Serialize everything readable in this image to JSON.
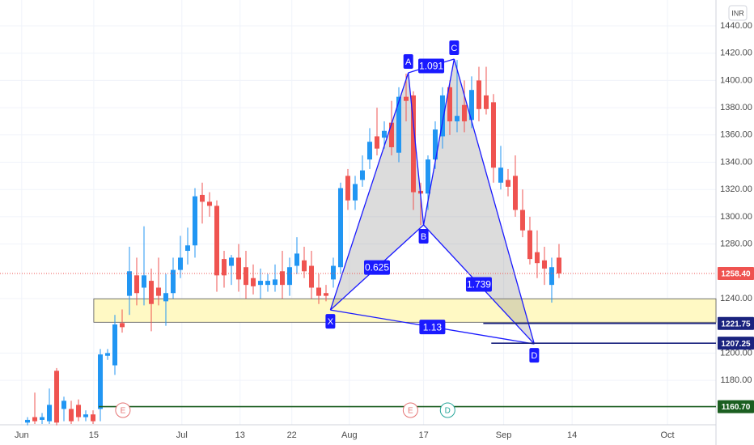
{
  "chart_data": {
    "type": "candlestick",
    "currency": "INR",
    "x": [
      0,
      1,
      2,
      3,
      4,
      5,
      6,
      7,
      8,
      9,
      10,
      11,
      12,
      13,
      14,
      15,
      16,
      17,
      18,
      19,
      20,
      21,
      22,
      23,
      24,
      25,
      26,
      27,
      28,
      29,
      30,
      31,
      32,
      33,
      34,
      35,
      36,
      37,
      38,
      39,
      40,
      41,
      42,
      43,
      44,
      45,
      46,
      47,
      48,
      49,
      50,
      51,
      52,
      53,
      54,
      55,
      56,
      57,
      58,
      59,
      60,
      61,
      62,
      63,
      64,
      65,
      66,
      67,
      68,
      69,
      70,
      71,
      72,
      73
    ],
    "open": [
      1149,
      1153,
      1151,
      1150,
      1187,
      1159,
      1159,
      1162,
      1153,
      1155,
      1159,
      1198,
      1191,
      1222,
      1242,
      1257,
      1248,
      1253,
      1248,
      1238,
      1244,
      1261,
      1275,
      1279,
      1316,
      1311,
      1308,
      1269,
      1264,
      1270,
      1263,
      1255,
      1250,
      1250,
      1250,
      1260,
      1250,
      1264,
      1268,
      1264,
      1248,
      1244,
      1254,
      1263,
      1330,
      1312,
      1327,
      1342,
      1359,
      1358,
      1369,
      1347,
      1388,
      1389,
      1319,
      1317,
      1342,
      1359,
      1395,
      1370,
      1382,
      1371,
      1400,
      1389,
      1384,
      1325,
      1327,
      1330,
      1305,
      1290,
      1274,
      1268,
      1250,
      1270
    ],
    "high": [
      1153,
      1171,
      1156,
      1174,
      1189,
      1168,
      1165,
      1166,
      1158,
      1158,
      1203,
      1203,
      1228,
      1232,
      1278,
      1270,
      1293,
      1262,
      1270,
      1258,
      1270,
      1286,
      1292,
      1321,
      1325,
      1318,
      1312,
      1275,
      1272,
      1280,
      1275,
      1265,
      1262,
      1258,
      1265,
      1275,
      1270,
      1285,
      1278,
      1275,
      1258,
      1250,
      1270,
      1325,
      1335,
      1330,
      1345,
      1365,
      1380,
      1370,
      1385,
      1395,
      1405,
      1392,
      1325,
      1345,
      1370,
      1395,
      1400,
      1415,
      1400,
      1403,
      1410,
      1410,
      1390,
      1352,
      1335,
      1345,
      1320,
      1300,
      1290,
      1278,
      1270,
      1280
    ],
    "low": [
      1147,
      1148,
      1148,
      1148,
      1147,
      1150,
      1148,
      1150,
      1150,
      1148,
      1150,
      1195,
      1184,
      1215,
      1228,
      1235,
      1235,
      1216,
      1235,
      1220,
      1240,
      1255,
      1265,
      1270,
      1295,
      1300,
      1245,
      1248,
      1250,
      1245,
      1240,
      1243,
      1240,
      1245,
      1245,
      1240,
      1242,
      1258,
      1255,
      1240,
      1236,
      1238,
      1248,
      1258,
      1305,
      1305,
      1322,
      1335,
      1345,
      1350,
      1345,
      1340,
      1370,
      1305,
      1294,
      1305,
      1335,
      1350,
      1360,
      1362,
      1362,
      1365,
      1370,
      1375,
      1325,
      1320,
      1315,
      1300,
      1285,
      1265,
      1255,
      1250,
      1237,
      1255
    ],
    "close": [
      1151,
      1150,
      1153,
      1162,
      1149,
      1165,
      1150,
      1153,
      1155,
      1150,
      1199,
      1200,
      1221,
      1219,
      1260,
      1244,
      1257,
      1236,
      1242,
      1244,
      1261,
      1270,
      1279,
      1315,
      1311,
      1308,
      1257,
      1257,
      1270,
      1254,
      1250,
      1249,
      1253,
      1253,
      1254,
      1250,
      1263,
      1273,
      1260,
      1248,
      1242,
      1242,
      1264,
      1321,
      1312,
      1324,
      1334,
      1355,
      1350,
      1363,
      1351,
      1388,
      1385,
      1318,
      1317,
      1342,
      1364,
      1389,
      1370,
      1374,
      1370,
      1393,
      1379,
      1379,
      1336,
      1336,
      1322,
      1305,
      1290,
      1269,
      1266,
      1262,
      1263,
      1258.4
    ],
    "up_color": "#2196f3",
    "down_color": "#ef5350",
    "xlim": [
      -3.78,
      94.56
    ],
    "ylim": [
      1147.4,
      1459
    ],
    "grid": true,
    "xticks": [
      {
        "value": -0.8,
        "label": "Jun"
      },
      {
        "value": 9.1,
        "label": "15"
      },
      {
        "value": 21.2,
        "label": "Jul"
      },
      {
        "value": 29.2,
        "label": "13"
      },
      {
        "value": 36.3,
        "label": "22"
      },
      {
        "value": 44.2,
        "label": "Aug"
      },
      {
        "value": 54.4,
        "label": "17"
      },
      {
        "value": 65.4,
        "label": "Sep"
      },
      {
        "value": 74.8,
        "label": "14"
      },
      {
        "value": 87.9,
        "label": "Oct"
      }
    ],
    "yticks": [
      {
        "value": 1180,
        "label": "1180.00"
      },
      {
        "value": 1200,
        "label": "1200.00"
      },
      {
        "value": 1240,
        "label": "1240.00"
      },
      {
        "value": 1280,
        "label": "1280.00"
      },
      {
        "value": 1300,
        "label": "1300.00"
      },
      {
        "value": 1320,
        "label": "1320.00"
      },
      {
        "value": 1340,
        "label": "1340.00"
      },
      {
        "value": 1360,
        "label": "1360.00"
      },
      {
        "value": 1380,
        "label": "1380.00"
      },
      {
        "value": 1400,
        "label": "1400.00"
      },
      {
        "value": 1420,
        "label": "1420.00"
      },
      {
        "value": 1440,
        "label": "1440.00"
      }
    ],
    "zone": {
      "x": 9.1,
      "y": [
        1222.6,
        1239.8
      ],
      "color": "#fff9c4"
    },
    "price_lines": [
      {
        "value": 1258.4,
        "label": "1258.40",
        "color": "#ef5350",
        "dotted": true
      },
      {
        "value": 1221.75,
        "label": "1221.75",
        "color": "#1a237e",
        "x_start": 62.6
      },
      {
        "value": 1207.25,
        "label": "1207.25",
        "color": "#1a237e",
        "x_start": 63.7
      },
      {
        "value": 1160.7,
        "label": "1160.70",
        "color": "#1b5e20",
        "x_start": 9.8
      }
    ],
    "pattern": {
      "color": "#1a1aff",
      "points": [
        {
          "label": "X",
          "x": 41.6,
          "y": 1231.6
        },
        {
          "label": "A",
          "x": 52.3,
          "y": 1405.6
        },
        {
          "label": "B",
          "x": 54.4,
          "y": 1294
        },
        {
          "label": "C",
          "x": 58.6,
          "y": 1415.7
        },
        {
          "label": "D",
          "x": 69.6,
          "y": 1206.7
        }
      ],
      "ratios": [
        "1.091",
        "0.625",
        "1.739",
        "1.13"
      ]
    },
    "events": [
      {
        "x": 13.1,
        "label": "E",
        "color": "#e57373"
      },
      {
        "x": 52.6,
        "label": "E",
        "color": "#e57373"
      },
      {
        "x": 57.7,
        "label": "D",
        "color": "#26a69a"
      }
    ]
  }
}
